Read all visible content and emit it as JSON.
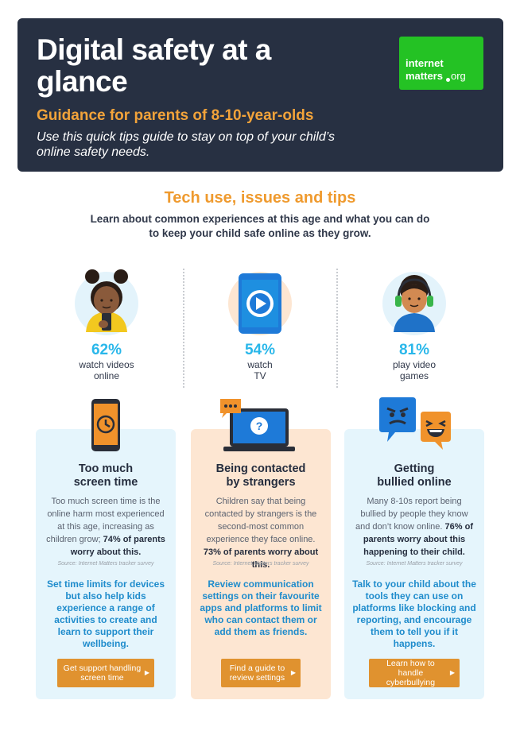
{
  "header": {
    "title": "Digital safety at a glance",
    "subtitle": "Guidance for parents of 8-10-year-olds",
    "intro": "Use this quick tips guide to stay on top of your child’s online safety needs.",
    "logo": {
      "line1": "internet",
      "line2": "matters",
      "suffix": "org"
    }
  },
  "section": {
    "title": "Tech use, issues and tips",
    "intro": "Learn about common experiences at this age and what you can do to keep your child safe online as they grow."
  },
  "stats": [
    {
      "percent": "62%",
      "label": "watch videos online",
      "icon": "girl-with-phone-icon"
    },
    {
      "percent": "54%",
      "label": "watch TV",
      "icon": "tablet-play-icon"
    },
    {
      "percent": "81%",
      "label": "play video games",
      "icon": "gamer-headset-icon"
    }
  ],
  "cards": [
    {
      "icon": "phone-clock-icon",
      "title_line1": "Too much",
      "title_line2": "screen time",
      "body_text": "Too much screen time is the online harm most experienced at this age, increasing as children grow; ",
      "body_bold": "74% of parents worry about this.",
      "source": "Source: Internet Matters tracker survey",
      "tip": "Set time limits for devices but also help kids experience a range of activities to create and learn to support their wellbeing.",
      "button": "Get support handling screen time"
    },
    {
      "icon": "laptop-question-icon",
      "title_line1": "Being contacted",
      "title_line2": "by strangers",
      "body_text": "Children say that being contacted by strangers is the second-most common experience they face online. ",
      "body_bold": "73% of parents worry about this.",
      "source": "Source: Internet Matters tracker survey",
      "tip": "Review communication settings on their favourite apps and platforms to limit who can contact them or add them as friends.",
      "button": "Find a guide to review settings"
    },
    {
      "icon": "angry-laughing-chat-icon",
      "title_line1": "Getting",
      "title_line2": "bullied online",
      "body_text": "Many 8-10s report being bullied by people they know and don’t know online. ",
      "body_bold": "76% of parents worry about this happening to their child.",
      "source": "Source: Internet Matters tracker survey",
      "tip": "Talk to your child about the tools they can use on platforms like blocking and reporting, and encourage them to tell you if it happens.",
      "button": "Learn how to handle cyberbullying"
    }
  ],
  "colors": {
    "header_bg": "#273042",
    "accent_orange": "#ef9a2e",
    "stat_blue": "#29b7ea",
    "tip_blue": "#1f8ccc",
    "logo_green": "#24c224",
    "card_blue": "#e5f5fc",
    "card_peach": "#fde6d2"
  }
}
